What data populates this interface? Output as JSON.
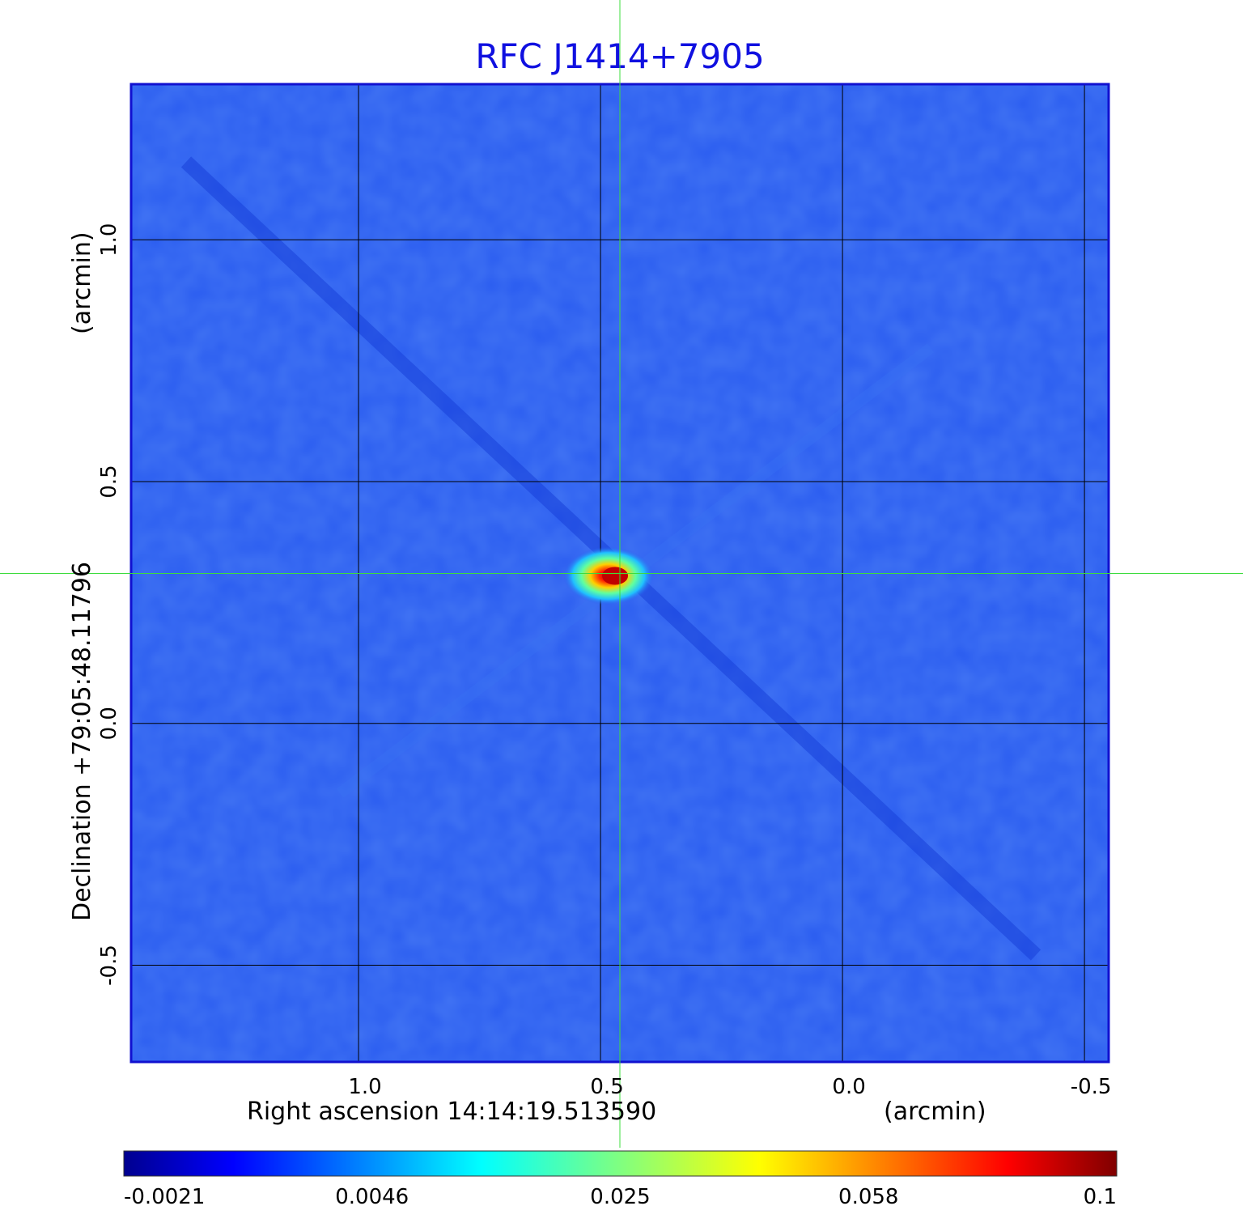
{
  "chart_data": {
    "type": "heatmap",
    "title": "RFC J1414+7905",
    "xlabel": "Right ascension  14:14:19.513590",
    "xunit": "(arcmin)",
    "ylabel": "Declination  +79:05:48.11796",
    "yunit": "(arcmin)",
    "xlim": [
      1.47,
      -0.55
    ],
    "ylim": [
      -0.7,
      1.32
    ],
    "x_ticks": [
      {
        "value": 1.0,
        "label": "1.0"
      },
      {
        "value": 0.5,
        "label": "0.5"
      },
      {
        "value": 0.0,
        "label": "0.0"
      },
      {
        "value": -0.5,
        "label": "-0.5"
      }
    ],
    "y_ticks": [
      {
        "value": 1.0,
        "label": "1.0"
      },
      {
        "value": 0.5,
        "label": "0.5"
      },
      {
        "value": 0.0,
        "label": "0.0"
      },
      {
        "value": -0.5,
        "label": "-0.5"
      }
    ],
    "grid": true,
    "crosshair": {
      "x": 0.46,
      "y": 0.31,
      "color": "#3ddc3d"
    },
    "source": {
      "x": 0.47,
      "y": 0.31,
      "peak": 0.1
    },
    "colormap": "jet",
    "colorbar": {
      "placement": "bottom",
      "ticks": [
        {
          "value": -0.0021,
          "label": "-0.0021"
        },
        {
          "value": 0.0046,
          "label": "0.0046"
        },
        {
          "value": 0.025,
          "label": "0.025"
        },
        {
          "value": 0.058,
          "label": "0.058"
        },
        {
          "value": 0.1,
          "label": "0.1"
        }
      ]
    },
    "colors": {
      "title": "#1010e0",
      "frame": "#1010d0",
      "background": "#2a5cf0",
      "grid": "#000000"
    }
  }
}
